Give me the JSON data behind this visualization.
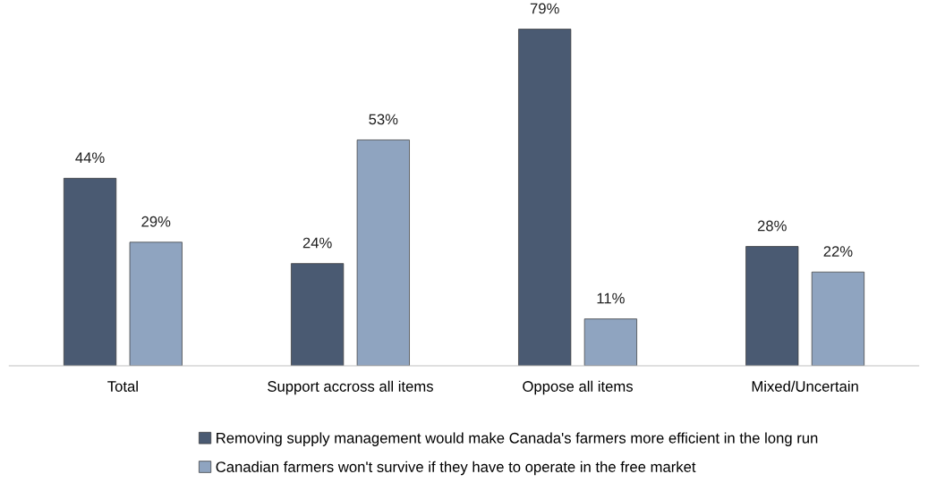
{
  "chart_data": {
    "type": "bar",
    "categories": [
      "Total",
      "Support accross all items",
      "Oppose all items",
      "Mixed/Uncertain"
    ],
    "series": [
      {
        "name": "Removing supply management would make Canada's farmers more efficient in the long run",
        "color": "#4a5a72",
        "values": [
          44,
          24,
          79,
          28
        ],
        "value_labels": [
          "44%",
          "24%",
          "79%",
          "28%"
        ]
      },
      {
        "name": "Canadian farmers won't survive if they have to operate in the free market",
        "color": "#8fa4c0",
        "values": [
          29,
          53,
          11,
          22
        ],
        "value_labels": [
          "29%",
          "53%",
          "11%",
          "22%"
        ]
      }
    ],
    "legend": "bottom",
    "grid": false,
    "tick_labels": "x"
  }
}
